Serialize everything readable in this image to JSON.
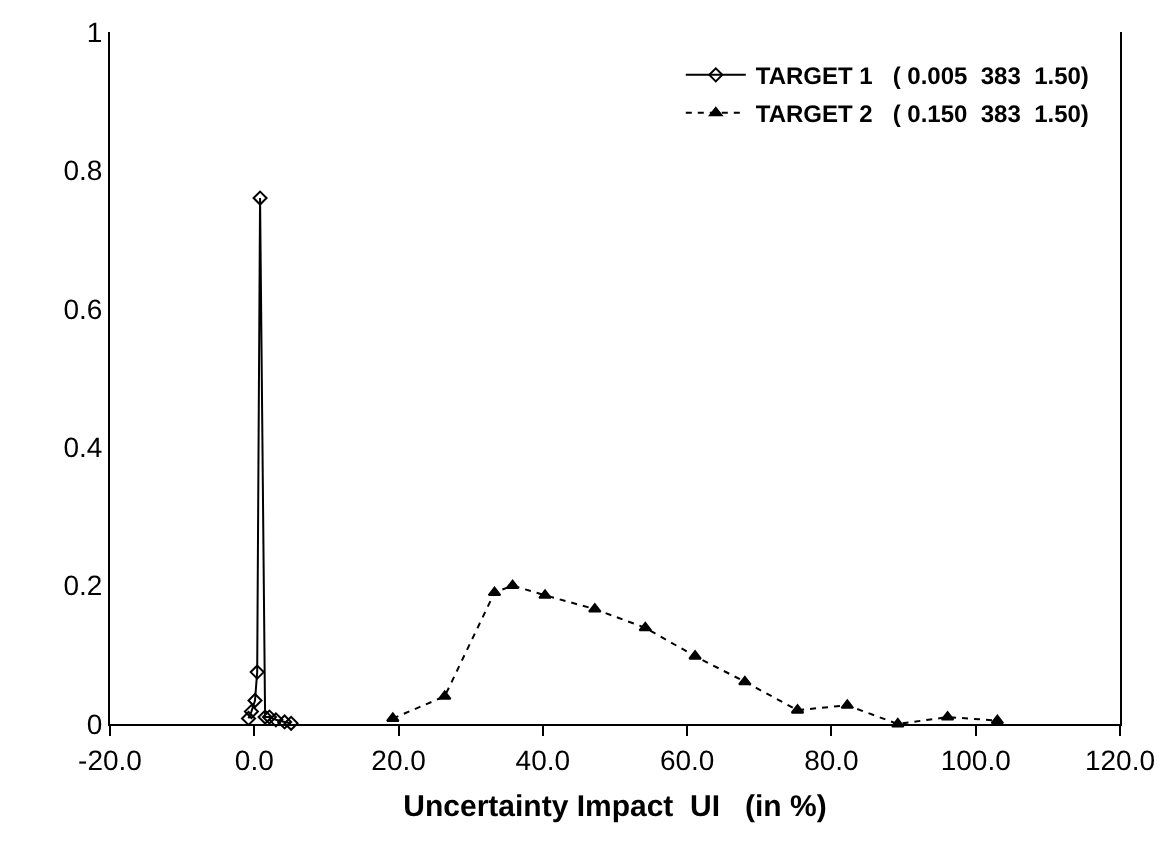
{
  "chart_data": {
    "type": "line",
    "xlabel": "Uncertainty Impact  UI   (in %)",
    "xlim": [
      -20,
      120
    ],
    "xticks": [
      {
        "value": -20,
        "label": "-20.0"
      },
      {
        "value": 0,
        "label": "0.0"
      },
      {
        "value": 20,
        "label": "20.0"
      },
      {
        "value": 40,
        "label": "40.0"
      },
      {
        "value": 60,
        "label": "60.0"
      },
      {
        "value": 80,
        "label": "80.0"
      },
      {
        "value": 100,
        "label": "100.0"
      },
      {
        "value": 120,
        "label": "120.0"
      }
    ],
    "ylim": [
      0,
      1
    ],
    "yticks": [
      0,
      0.2,
      0.4,
      0.6,
      0.8,
      1
    ],
    "grid": false,
    "legend": "top right",
    "series": [
      {
        "name": "TARGET 1   ( 0.005  383  1.50)",
        "color": "#000000",
        "marker": "diamond",
        "line_style": "solid",
        "x": [
          -0.8,
          -0.4,
          0.1,
          0.4,
          0.8,
          1.5,
          2.1,
          3.0,
          4.2,
          5.1
        ],
        "values": [
          0.008,
          0.018,
          0.034,
          0.075,
          0.76,
          0.01,
          0.01,
          0.006,
          0.003,
          0.001
        ]
      },
      {
        "name": "TARGET 2   ( 0.150  383  1.50)",
        "color": "#000000",
        "marker": "triangle",
        "line_style": "dotted",
        "x": [
          19.2,
          26.4,
          33.3,
          35.8,
          40.3,
          47.2,
          54.2,
          61.1,
          68,
          75.3,
          82.2,
          89.2,
          96.1,
          103
        ],
        "values": [
          0.008,
          0.04,
          0.19,
          0.2,
          0.186,
          0.166,
          0.139,
          0.098,
          0.061,
          0.02,
          0.027,
          0,
          0.01,
          0.005
        ]
      }
    ]
  }
}
